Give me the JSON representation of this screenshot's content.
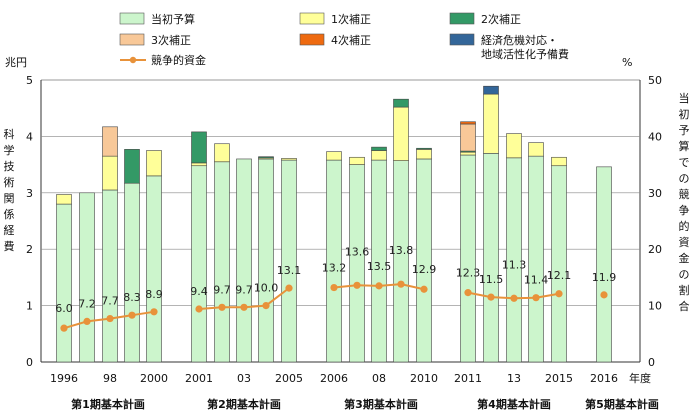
{
  "chart_data": {
    "type": "bar",
    "stacked": true,
    "secondary_axis_series": "競争的資金",
    "left_axis": {
      "unit": "兆円",
      "label": [
        "科",
        "学",
        "技",
        "術",
        "関",
        "係",
        "経",
        "費"
      ],
      "ylim": [
        0,
        5
      ],
      "ticks": [
        "0",
        "1",
        "2",
        "3",
        "4",
        "5"
      ]
    },
    "right_axis": {
      "unit": "%",
      "label": [
        "当",
        "初",
        "予",
        "算",
        "で",
        "の",
        "競",
        "争",
        "的",
        "資",
        "金",
        "の",
        "割",
        "合"
      ],
      "ylim": [
        0,
        50
      ],
      "ticks": [
        "0",
        "10",
        "20",
        "30",
        "40",
        "50"
      ]
    },
    "x_axis_suffix": "年度",
    "years": [
      1996,
      1997,
      1998,
      1999,
      2000,
      2001,
      2002,
      2003,
      2004,
      2005,
      2006,
      2007,
      2008,
      2009,
      2010,
      2011,
      2012,
      2013,
      2014,
      2015,
      2016
    ],
    "tick_labels": [
      {
        "year": 1996,
        "text": "1996"
      },
      {
        "year": 1998,
        "text": "98"
      },
      {
        "year": 2000,
        "text": "2000"
      },
      {
        "year": 2001,
        "text": "2001"
      },
      {
        "year": 2003,
        "text": "03"
      },
      {
        "year": 2005,
        "text": "2005"
      },
      {
        "year": 2006,
        "text": "2006"
      },
      {
        "year": 2008,
        "text": "08"
      },
      {
        "year": 2010,
        "text": "2010"
      },
      {
        "year": 2011,
        "text": "2011"
      },
      {
        "year": 2013,
        "text": "13"
      },
      {
        "year": 2015,
        "text": "2015"
      },
      {
        "year": 2016,
        "text": "2016"
      }
    ],
    "groups": [
      {
        "label": "第1期基本計画",
        "years": [
          1996,
          1997,
          1998,
          1999,
          2000
        ]
      },
      {
        "label": "第2期基本計画",
        "years": [
          2001,
          2002,
          2003,
          2004,
          2005
        ]
      },
      {
        "label": "第3期基本計画",
        "years": [
          2006,
          2007,
          2008,
          2009,
          2010
        ]
      },
      {
        "label": "第4期基本計画",
        "years": [
          2011,
          2012,
          2013,
          2014,
          2015
        ]
      },
      {
        "label": "第5期基本計画",
        "years": [
          2016
        ]
      }
    ],
    "series": [
      {
        "name": "当初予算",
        "color": "#ccf5cc",
        "values": [
          2.8,
          3.0,
          3.05,
          3.17,
          3.3,
          3.48,
          3.55,
          3.6,
          3.6,
          3.58,
          3.58,
          3.5,
          3.58,
          3.57,
          3.6,
          3.67,
          3.7,
          3.62,
          3.65,
          3.48,
          3.46
        ]
      },
      {
        "name": "1次補正",
        "color": "#ffff99",
        "values": [
          0.17,
          0,
          0.6,
          0,
          0.45,
          0.05,
          0.32,
          0,
          0.02,
          0.03,
          0.15,
          0.13,
          0.17,
          0.95,
          0.17,
          0.05,
          1.05,
          0.43,
          0.24,
          0.15,
          0
        ]
      },
      {
        "name": "2次補正",
        "color": "#339966",
        "values": [
          0,
          0,
          0,
          0.6,
          0,
          0.55,
          0,
          0,
          0.02,
          0,
          0,
          0,
          0.06,
          0.14,
          0.02,
          0.02,
          0,
          0,
          0,
          0,
          0
        ]
      },
      {
        "name": "3次補正",
        "color": "#f8c898",
        "values": [
          0,
          0,
          0.52,
          0,
          0,
          0,
          0,
          0,
          0,
          0,
          0,
          0,
          0,
          0,
          0,
          0.48,
          0,
          0,
          0,
          0,
          0
        ]
      },
      {
        "name": "4次補正",
        "color": "#ee6a10",
        "values": [
          0,
          0,
          0,
          0,
          0,
          0,
          0,
          0,
          0,
          0,
          0,
          0,
          0,
          0,
          0,
          0.04,
          0,
          0,
          0,
          0,
          0
        ]
      },
      {
        "name": "経済危機対応・\n地域活性化予備費",
        "color": "#336699",
        "values": [
          0,
          0,
          0,
          0,
          0,
          0,
          0,
          0,
          0,
          0,
          0,
          0,
          0,
          0,
          0,
          0,
          0.14,
          0,
          0,
          0,
          0
        ]
      }
    ],
    "line": {
      "name": "競争的資金",
      "color": "#e8923a",
      "values": [
        6.0,
        7.2,
        7.7,
        8.3,
        8.9,
        9.4,
        9.7,
        9.7,
        10.0,
        13.1,
        13.2,
        13.6,
        13.5,
        13.8,
        12.9,
        12.3,
        11.5,
        11.3,
        11.4,
        12.1,
        11.9
      ],
      "labels": [
        "6.0",
        "7.2",
        "7.7",
        "8.3",
        "8.9",
        "9.4",
        "9.7",
        "9.7",
        "10.0",
        "13.1",
        "13.2",
        "13.6",
        "13.5",
        "13.8",
        "12.9",
        "12.3",
        "11.5",
        "11.3",
        "11.4",
        "12.1",
        "11.9"
      ]
    }
  }
}
